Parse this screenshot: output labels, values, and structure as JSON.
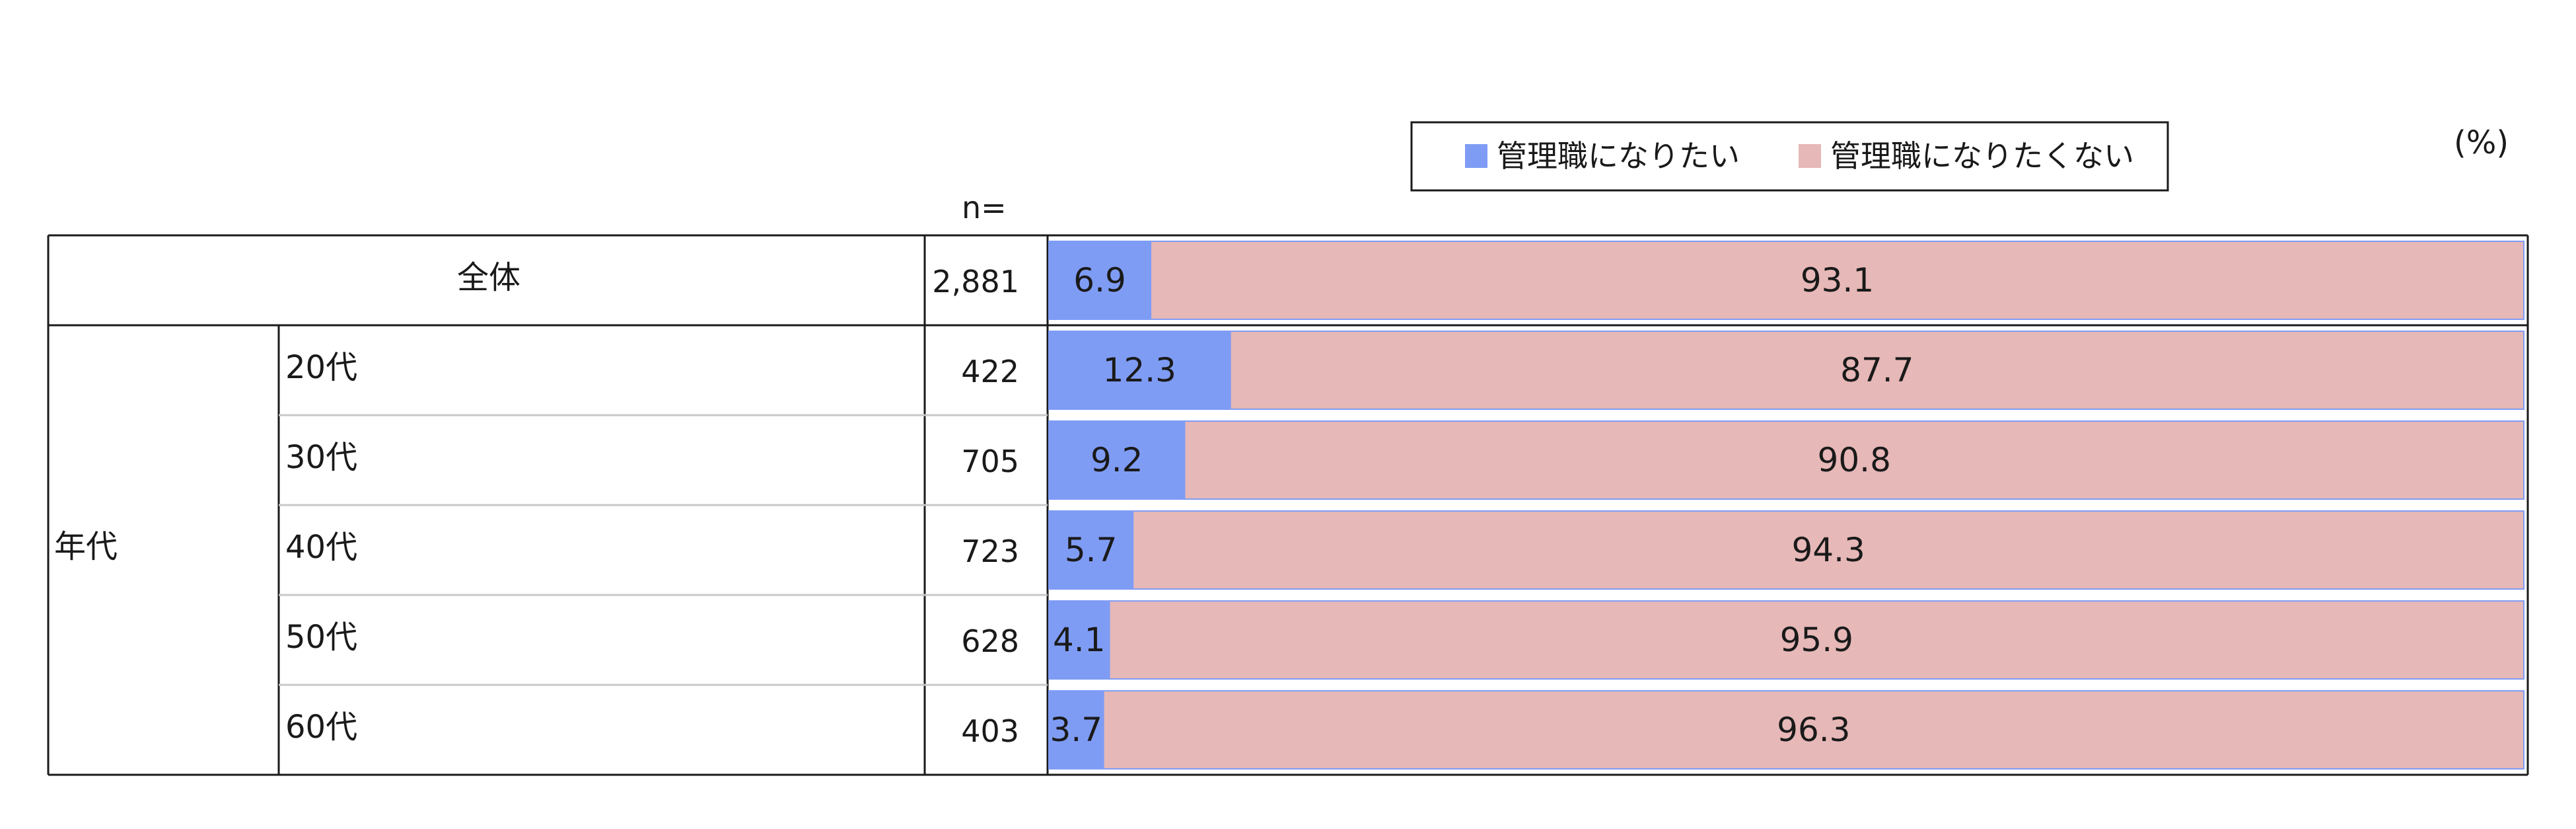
{
  "chart_data": {
    "type": "bar",
    "stacked": true,
    "orientation": "horizontal",
    "unit_label": "(%)",
    "n_header": "n=",
    "legend": {
      "position": "top",
      "entries": [
        {
          "label": "管理職になりたい",
          "color": "#7f9cf5"
        },
        {
          "label": "管理職になりたくない",
          "color": "#e6b8b7"
        }
      ]
    },
    "group_label": "年代",
    "rows": [
      {
        "label": "全体",
        "n": "2,881",
        "values": [
          6.9,
          93.1
        ]
      },
      {
        "label": "20代",
        "n": "422",
        "values": [
          12.3,
          87.7
        ]
      },
      {
        "label": "30代",
        "n": "705",
        "values": [
          9.2,
          90.8
        ]
      },
      {
        "label": "40代",
        "n": "723",
        "values": [
          5.7,
          94.3
        ]
      },
      {
        "label": "50代",
        "n": "628",
        "values": [
          4.1,
          95.9
        ]
      },
      {
        "label": "60代",
        "n": "403",
        "values": [
          3.7,
          96.3
        ]
      }
    ],
    "series": [
      {
        "name": "管理職になりたい",
        "values": [
          6.9,
          12.3,
          9.2,
          5.7,
          4.1,
          3.7
        ]
      },
      {
        "name": "管理職になりたくない",
        "values": [
          93.1,
          87.7,
          90.8,
          94.3,
          95.9,
          96.3
        ]
      }
    ],
    "xlim": [
      0,
      100
    ]
  }
}
